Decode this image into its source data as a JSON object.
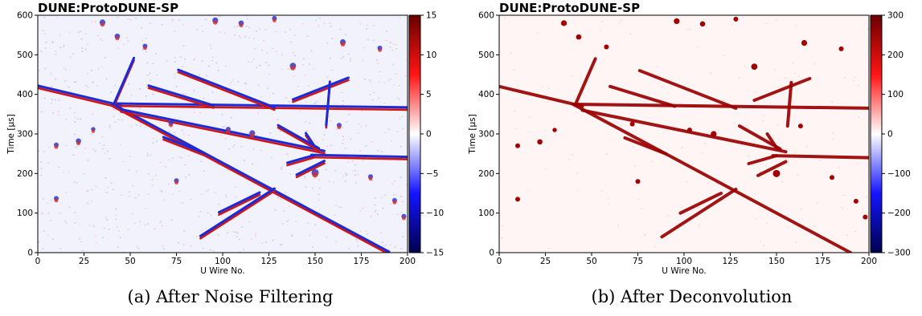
{
  "chart_data": [
    {
      "type": "heatmap",
      "title": "DUNE:ProtoDUNE-SP",
      "xlabel": "U Wire No.",
      "ylabel": "Time [μs]",
      "xlim": [
        0,
        200
      ],
      "ylim": [
        0,
        600
      ],
      "x_ticks": [
        "0",
        "25",
        "50",
        "75",
        "100",
        "125",
        "150",
        "175",
        "200"
      ],
      "y_ticks": [
        "0",
        "100",
        "200",
        "300",
        "400",
        "500",
        "600"
      ],
      "colorbar": {
        "min": -15,
        "max": 15,
        "ticks": [
          "15",
          "10",
          "5",
          "0",
          "−5",
          "−10",
          "−15"
        ],
        "colormap": "seismic"
      },
      "caption": "(a) After Noise Filtering",
      "style": "bipolar"
    },
    {
      "type": "heatmap",
      "title": "DUNE:ProtoDUNE-SP",
      "xlabel": "U Wire No.",
      "ylabel": "Time [μs]",
      "xlim": [
        0,
        200
      ],
      "ylim": [
        0,
        600
      ],
      "x_ticks": [
        "0",
        "25",
        "50",
        "75",
        "100",
        "125",
        "150",
        "175",
        "200"
      ],
      "y_ticks": [
        "0",
        "100",
        "200",
        "300",
        "400",
        "500",
        "600"
      ],
      "colorbar": {
        "min": -300,
        "max": 300,
        "ticks": [
          "300",
          "200",
          "100",
          "0",
          "−100",
          "−200",
          "−300"
        ],
        "colormap": "seismic"
      },
      "caption": "(b) After Deconvolution",
      "style": "unipolar"
    }
  ],
  "tracks": [
    {
      "from": [
        0,
        420
      ],
      "to": [
        45,
        370
      ]
    },
    {
      "from": [
        40,
        375
      ],
      "to": [
        200,
        365
      ]
    },
    {
      "from": [
        42,
        370
      ],
      "to": [
        190,
        0
      ]
    },
    {
      "from": [
        45,
        360
      ],
      "to": [
        155,
        255
      ]
    },
    {
      "from": [
        41,
        372
      ],
      "to": [
        52,
        490
      ]
    },
    {
      "from": [
        148,
        245
      ],
      "to": [
        200,
        240
      ]
    },
    {
      "from": [
        88,
        40
      ],
      "to": [
        128,
        160
      ]
    },
    {
      "from": [
        98,
        100
      ],
      "to": [
        120,
        150
      ]
    },
    {
      "from": [
        138,
        385
      ],
      "to": [
        168,
        440
      ]
    },
    {
      "from": [
        76,
        460
      ],
      "to": [
        128,
        365
      ]
    },
    {
      "from": [
        150,
        245
      ],
      "to": [
        135,
        225
      ]
    },
    {
      "from": [
        155,
        230
      ],
      "to": [
        140,
        195
      ]
    },
    {
      "from": [
        145,
        300
      ],
      "to": [
        150,
        265
      ]
    },
    {
      "from": [
        68,
        290
      ],
      "to": [
        90,
        250
      ]
    },
    {
      "from": [
        158,
        430
      ],
      "to": [
        156,
        320
      ]
    },
    {
      "from": [
        130,
        320
      ],
      "to": [
        152,
        262
      ]
    },
    {
      "from": [
        60,
        420
      ],
      "to": [
        95,
        370
      ]
    }
  ],
  "blobs": [
    {
      "at": [
        35,
        580
      ],
      "r": 1.2
    },
    {
      "at": [
        43,
        545
      ],
      "r": 1.1
    },
    {
      "at": [
        58,
        520
      ],
      "r": 1.0
    },
    {
      "at": [
        96,
        585
      ],
      "r": 1.2
    },
    {
      "at": [
        110,
        578
      ],
      "r": 1.1
    },
    {
      "at": [
        128,
        590
      ],
      "r": 1.0
    },
    {
      "at": [
        165,
        530
      ],
      "r": 1.2
    },
    {
      "at": [
        185,
        515
      ],
      "r": 1.0
    },
    {
      "at": [
        138,
        470
      ],
      "r": 1.3
    },
    {
      "at": [
        10,
        270
      ],
      "r": 1.0
    },
    {
      "at": [
        22,
        280
      ],
      "r": 1.1
    },
    {
      "at": [
        75,
        180
      ],
      "r": 1.0
    },
    {
      "at": [
        10,
        135
      ],
      "r": 1.0
    },
    {
      "at": [
        150,
        200
      ],
      "r": 1.5
    },
    {
      "at": [
        193,
        130
      ],
      "r": 1.0
    },
    {
      "at": [
        198,
        90
      ],
      "r": 1.0
    },
    {
      "at": [
        180,
        190
      ],
      "r": 1.0
    },
    {
      "at": [
        30,
        310
      ],
      "r": 0.9
    },
    {
      "at": [
        72,
        325
      ],
      "r": 1.0
    },
    {
      "at": [
        103,
        310
      ],
      "r": 1.0
    },
    {
      "at": [
        116,
        300
      ],
      "r": 1.2
    },
    {
      "at": [
        163,
        320
      ],
      "r": 1.0
    }
  ]
}
